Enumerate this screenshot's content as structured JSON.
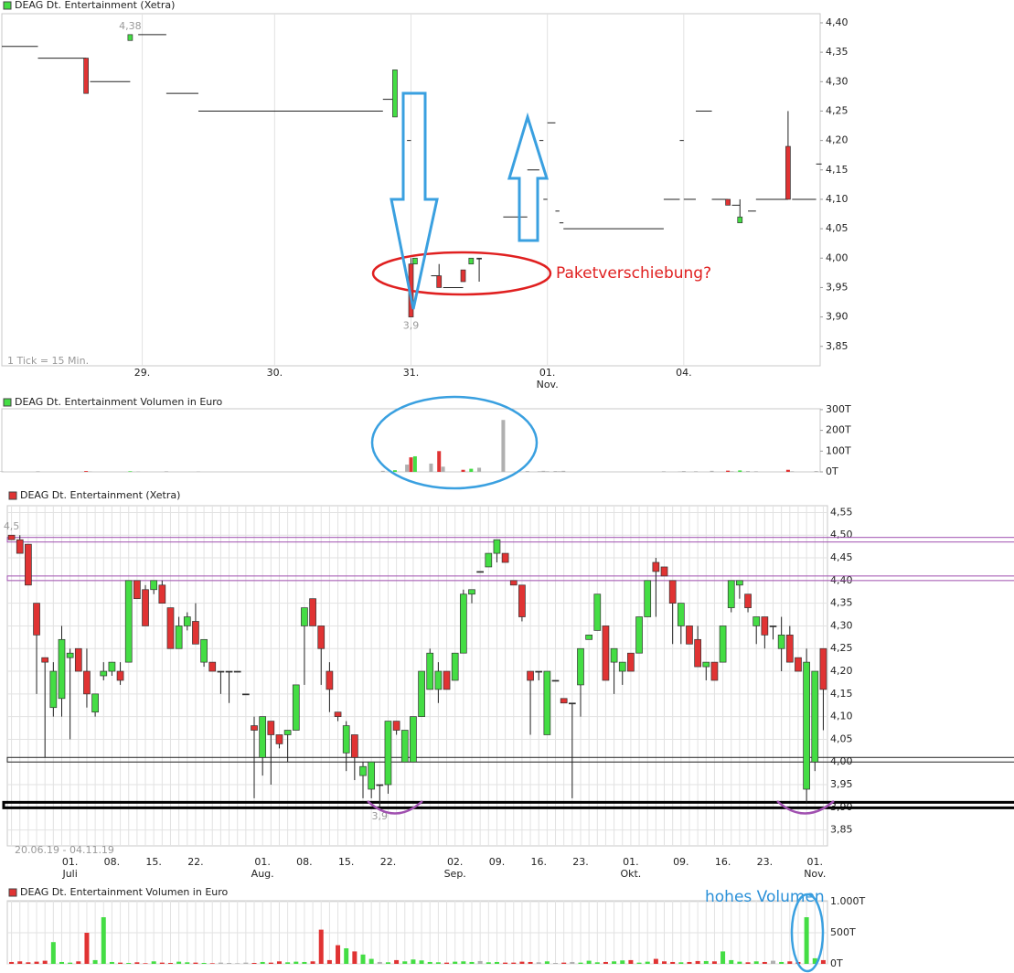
{
  "chart_data": [
    {
      "type": "candlestick",
      "title": "DEAG Dt. Entertainment (Xetra)",
      "note": "1 Tick = 15 Min.",
      "x": [
        0,
        9,
        21,
        22,
        32,
        34,
        41,
        49,
        95,
        98,
        101,
        102,
        103,
        107,
        109,
        110,
        115,
        117,
        119,
        125,
        131,
        134,
        135,
        136,
        138,
        139,
        140,
        165,
        169,
        170,
        173,
        177,
        181,
        182,
        184,
        186,
        188,
        196,
        197,
        203
      ],
      "open": [
        4.36,
        4.34,
        4.34,
        4.3,
        4.37,
        4.38,
        4.28,
        4.25,
        4.27,
        4.24,
        4.2,
        3.99,
        3.99,
        3.97,
        3.97,
        3.95,
        3.98,
        3.99,
        4.0,
        4.07,
        4.15,
        4.2,
        4.1,
        4.23,
        4.08,
        4.06,
        4.05,
        4.1,
        4.2,
        4.1,
        4.25,
        4.1,
        4.1,
        4.09,
        4.06,
        4.08,
        4.1,
        4.19,
        4.1,
        4.16
      ],
      "high": [
        4.36,
        4.34,
        4.34,
        4.3,
        4.38,
        4.38,
        4.28,
        4.25,
        4.27,
        4.32,
        4.2,
        4.0,
        4.0,
        3.97,
        3.99,
        3.95,
        3.98,
        4.0,
        4.0,
        4.07,
        4.15,
        4.2,
        4.1,
        4.23,
        4.08,
        4.06,
        4.05,
        4.1,
        4.2,
        4.1,
        4.25,
        4.1,
        4.1,
        4.09,
        4.1,
        4.08,
        4.1,
        4.25,
        4.1,
        4.16
      ],
      "low": [
        4.36,
        4.34,
        4.28,
        4.3,
        4.37,
        4.38,
        4.28,
        4.25,
        4.27,
        4.24,
        4.2,
        3.9,
        3.99,
        3.97,
        3.95,
        3.95,
        3.96,
        3.99,
        3.96,
        4.07,
        4.15,
        4.2,
        4.1,
        4.23,
        4.08,
        4.06,
        4.05,
        4.1,
        4.2,
        4.1,
        4.25,
        4.1,
        4.09,
        4.09,
        4.06,
        4.08,
        4.1,
        4.1,
        4.1,
        4.16
      ],
      "close": [
        4.36,
        4.34,
        4.28,
        4.3,
        4.38,
        4.38,
        4.28,
        4.25,
        4.27,
        4.32,
        4.2,
        3.9,
        4.0,
        3.97,
        3.95,
        3.95,
        3.96,
        4.0,
        4.0,
        4.07,
        4.15,
        4.2,
        4.1,
        4.23,
        4.08,
        4.06,
        4.05,
        4.1,
        4.2,
        4.1,
        4.25,
        4.1,
        4.09,
        4.09,
        4.07,
        4.08,
        4.1,
        4.1,
        4.1,
        4.16
      ],
      "up_color": "#44dd44",
      "down_color": "#e03333",
      "flat_color": "#222",
      "xlim": [
        0,
        204
      ],
      "xticks": [
        {
          "value": 35,
          "label": "29."
        },
        {
          "value": 68,
          "label": "30."
        },
        {
          "value": 102,
          "label": "31."
        },
        {
          "value": 136,
          "label": "01.\nNov."
        },
        {
          "value": 170,
          "label": "04."
        }
      ],
      "ylim": [
        3.817,
        4.4155
      ],
      "yticks": [
        {
          "value": 4.4,
          "label": "4,40"
        },
        {
          "value": 4.35,
          "label": "4,35"
        },
        {
          "value": 4.3,
          "label": "4,30"
        },
        {
          "value": 4.25,
          "label": "4,25"
        },
        {
          "value": 4.2,
          "label": "4,20"
        },
        {
          "value": 4.15,
          "label": "4,15"
        },
        {
          "value": 4.1,
          "label": "4,10"
        },
        {
          "value": 4.05,
          "label": "4,05"
        },
        {
          "value": 4,
          "label": "4,00"
        },
        {
          "value": 3.95,
          "label": "3,95"
        },
        {
          "value": 3.9,
          "label": "3,90"
        },
        {
          "value": 3.85,
          "label": "3,85"
        }
      ],
      "grid": "x",
      "annotations": [
        {
          "value": 4.38,
          "label": "4,38"
        },
        {
          "value": 3.9,
          "label": "3,9"
        }
      ],
      "callout": "Paketverschiebung?"
    },
    {
      "type": "bar",
      "title": "DEAG Dt. Entertainment Volumen in Euro",
      "x": [
        0,
        9,
        21,
        22,
        32,
        34,
        41,
        49,
        95,
        98,
        101,
        102,
        103,
        107,
        109,
        110,
        115,
        117,
        119,
        125,
        131,
        134,
        135,
        136,
        138,
        139,
        140,
        165,
        169,
        170,
        173,
        177,
        181,
        182,
        184,
        186,
        188,
        196,
        197,
        203
      ],
      "values": [
        2,
        3,
        4,
        2,
        3,
        2,
        3,
        2,
        5,
        8,
        35,
        70,
        75,
        40,
        100,
        25,
        10,
        15,
        20,
        250,
        4,
        3,
        5,
        3,
        4,
        3,
        5,
        3,
        2,
        4,
        3,
        5,
        6,
        3,
        7,
        4,
        3,
        10,
        3,
        4
      ],
      "xlim": [
        0,
        204
      ],
      "ylim": [
        0,
        304
      ],
      "yticks": [
        {
          "value": 300,
          "label": "300T"
        },
        {
          "value": 200,
          "label": "200T"
        },
        {
          "value": 100,
          "label": "100T"
        },
        {
          "value": 0,
          "label": "0T"
        }
      ],
      "grid": false
    },
    {
      "type": "candlestick",
      "title": "DEAG Dt. Entertainment (Xetra)",
      "note": "20.06.19 - 04.11.19",
      "categories": [
        null,
        null,
        null,
        null,
        null,
        null,
        null,
        "01.\nJuli",
        null,
        null,
        null,
        null,
        "08.",
        null,
        null,
        null,
        null,
        "15.",
        null,
        null,
        null,
        null,
        "22.",
        null,
        null,
        null,
        null,
        null,
        null,
        null,
        "01.\nAug.",
        null,
        null,
        null,
        null,
        "08.",
        null,
        null,
        null,
        null,
        "15.",
        null,
        null,
        null,
        null,
        "22.",
        null,
        null,
        null,
        null,
        null,
        null,
        null,
        "02.\nSep.",
        null,
        null,
        null,
        null,
        "09.",
        null,
        null,
        null,
        null,
        "16.",
        null,
        null,
        null,
        null,
        "23.",
        null,
        null,
        null,
        null,
        null,
        "01.\nOkt.",
        null,
        null,
        null,
        null,
        null,
        "09.",
        null,
        null,
        null,
        null,
        "16.",
        null,
        null,
        null,
        null,
        "23.",
        null,
        null,
        null,
        null,
        null,
        "01.\nNov.",
        null
      ],
      "open": [
        4.5,
        4.49,
        4.48,
        4.35,
        4.23,
        4.12,
        4.14,
        4.23,
        4.25,
        4.2,
        4.11,
        4.19,
        4.2,
        4.2,
        4.22,
        4.4,
        4.38,
        4.38,
        4.39,
        4.34,
        4.25,
        4.3,
        4.31,
        4.22,
        4.22,
        4.2,
        4.2,
        4.2,
        4.15,
        4.08,
        4.01,
        4.09,
        4.06,
        4.06,
        4.07,
        4.3,
        4.36,
        4.3,
        4.2,
        4.11,
        4.02,
        4.06,
        3.97,
        3.94,
        3.95,
        3.95,
        4.09,
        4.0,
        4.0,
        4.1,
        4.16,
        4.16,
        4.2,
        4.18,
        4.24,
        4.37,
        4.42,
        4.43,
        4.46,
        4.46,
        4.4,
        4.39,
        4.2,
        4.2,
        4.06,
        4.18,
        4.14,
        4.13,
        4.17,
        4.27,
        4.29,
        4.3,
        4.22,
        4.2,
        4.24,
        4.24,
        4.32,
        4.44,
        4.43,
        4.4,
        4.3,
        4.3,
        4.27,
        4.21,
        4.22,
        4.22,
        4.34,
        4.39,
        4.37,
        4.3,
        4.32,
        4.3,
        4.25,
        4.28,
        4.23,
        3.94,
        4.0,
        4.25
      ],
      "high": [
        4.5,
        4.5,
        4.48,
        4.35,
        4.23,
        4.22,
        4.3,
        4.25,
        4.25,
        4.25,
        4.15,
        4.22,
        4.22,
        4.22,
        4.4,
        4.4,
        4.39,
        4.4,
        4.4,
        4.34,
        4.32,
        4.33,
        4.35,
        4.27,
        4.22,
        4.2,
        4.2,
        4.2,
        4.15,
        4.1,
        4.1,
        4.09,
        4.06,
        4.07,
        4.17,
        4.34,
        4.36,
        4.3,
        4.22,
        4.11,
        4.09,
        4.06,
        4.0,
        4.0,
        3.95,
        4.09,
        4.09,
        4.07,
        4.1,
        4.2,
        4.25,
        4.22,
        4.2,
        4.24,
        4.38,
        4.38,
        4.42,
        4.46,
        4.49,
        4.46,
        4.4,
        4.39,
        4.2,
        4.2,
        4.2,
        4.18,
        4.14,
        4.13,
        4.25,
        4.28,
        4.37,
        4.3,
        4.25,
        4.22,
        4.24,
        4.32,
        4.4,
        4.45,
        4.43,
        4.4,
        4.35,
        4.3,
        4.3,
        4.22,
        4.22,
        4.3,
        4.4,
        4.4,
        4.37,
        4.32,
        4.32,
        4.3,
        4.32,
        4.3,
        4.23,
        4.25,
        4.2,
        4.25
      ],
      "low": [
        4.49,
        4.46,
        4.39,
        4.15,
        4.01,
        4.1,
        4.1,
        4.05,
        4.2,
        4.12,
        4.1,
        4.18,
        4.19,
        4.17,
        4.22,
        4.36,
        4.3,
        4.37,
        4.35,
        4.25,
        4.25,
        4.29,
        4.26,
        4.21,
        4.2,
        4.15,
        4.13,
        4.2,
        4.15,
        3.92,
        3.97,
        3.95,
        4.03,
        4.0,
        4.07,
        4.17,
        4.3,
        4.17,
        4.11,
        4.09,
        3.98,
        3.96,
        3.92,
        3.92,
        3.9,
        3.93,
        4.06,
        4.0,
        4.0,
        4.1,
        4.16,
        4.13,
        4.16,
        4.18,
        4.24,
        4.35,
        4.42,
        4.43,
        4.44,
        4.44,
        4.39,
        4.31,
        4.06,
        4.18,
        4.06,
        4.18,
        4.13,
        3.92,
        4.1,
        4.27,
        4.29,
        4.18,
        4.15,
        4.17,
        4.2,
        4.24,
        4.32,
        4.32,
        4.41,
        4.26,
        4.26,
        4.26,
        4.21,
        4.18,
        4.18,
        4.22,
        4.33,
        4.36,
        4.33,
        4.26,
        4.25,
        4.27,
        4.2,
        4.22,
        4.2,
        3.91,
        3.98,
        4.07
      ],
      "close": [
        4.49,
        4.46,
        4.39,
        4.28,
        4.22,
        4.2,
        4.27,
        4.24,
        4.2,
        4.15,
        4.15,
        4.2,
        4.22,
        4.18,
        4.4,
        4.36,
        4.3,
        4.4,
        4.35,
        4.25,
        4.3,
        4.32,
        4.26,
        4.27,
        4.2,
        4.2,
        4.2,
        4.2,
        4.15,
        4.07,
        4.1,
        4.06,
        4.04,
        4.07,
        4.17,
        4.34,
        4.3,
        4.25,
        4.16,
        4.1,
        4.08,
        4.01,
        3.99,
        4.0,
        3.95,
        4.09,
        4.07,
        4.07,
        4.1,
        4.2,
        4.24,
        4.2,
        4.16,
        4.24,
        4.37,
        4.38,
        4.42,
        4.46,
        4.49,
        4.44,
        4.39,
        4.32,
        4.18,
        4.2,
        4.2,
        4.18,
        4.13,
        4.13,
        4.25,
        4.28,
        4.37,
        4.18,
        4.25,
        4.22,
        4.2,
        4.32,
        4.4,
        4.42,
        4.41,
        4.35,
        4.35,
        4.26,
        4.21,
        4.22,
        4.18,
        4.3,
        4.4,
        4.4,
        4.34,
        4.32,
        4.28,
        4.3,
        4.28,
        4.22,
        4.2,
        4.22,
        4.2,
        4.16
      ],
      "up_color": "#44dd44",
      "down_color": "#e03333",
      "flat_color": "#222",
      "ylim": [
        3.815,
        4.565
      ],
      "yticks": [
        {
          "value": 4.55,
          "label": "4,55"
        },
        {
          "value": 4.5,
          "label": "4,50"
        },
        {
          "value": 4.45,
          "label": "4,45"
        },
        {
          "value": 4.4,
          "label": "4,40"
        },
        {
          "value": 4.35,
          "label": "4,35"
        },
        {
          "value": 4.3,
          "label": "4,30"
        },
        {
          "value": 4.25,
          "label": "4,25"
        },
        {
          "value": 4.2,
          "label": "4,20"
        },
        {
          "value": 4.15,
          "label": "4,15"
        },
        {
          "value": 4.1,
          "label": "4,10"
        },
        {
          "value": 4.05,
          "label": "4,05"
        },
        {
          "value": 4,
          "label": "4,00"
        },
        {
          "value": 3.95,
          "label": "3,95"
        },
        {
          "value": 3.9,
          "label": "3,90"
        },
        {
          "value": 3.85,
          "label": "3,85"
        }
      ],
      "grid": "both",
      "levels": [
        {
          "value": 4.49,
          "color": "#a050b0",
          "weight": 1
        },
        {
          "value": 4.405,
          "color": "#a050b0",
          "weight": 1
        },
        {
          "value": 4.005,
          "color": "#222222",
          "weight": 1
        },
        {
          "value": 3.905,
          "color": "#000000",
          "weight": 3
        }
      ],
      "annotations": [
        {
          "value": 4.5,
          "label": "4,5"
        },
        {
          "value": 3.9,
          "label": "3,9"
        }
      ]
    },
    {
      "type": "bar",
      "title": "DEAG Dt. Entertainment Volumen in Euro",
      "values": [
        30,
        40,
        25,
        35,
        50,
        350,
        30,
        20,
        40,
        500,
        60,
        750,
        30,
        20,
        15,
        25,
        10,
        40,
        20,
        15,
        35,
        25,
        20,
        15,
        10,
        20,
        15,
        10,
        20,
        15,
        30,
        20,
        40,
        25,
        35,
        30,
        40,
        550,
        60,
        300,
        250,
        200,
        150,
        80,
        30,
        25,
        60,
        40,
        70,
        55,
        30,
        25,
        20,
        35,
        40,
        30,
        45,
        25,
        30,
        20,
        20,
        35,
        30,
        25,
        40,
        15,
        20,
        30,
        20,
        50,
        25,
        30,
        40,
        55,
        60,
        20,
        35,
        80,
        40,
        30,
        25,
        30,
        45,
        45,
        40,
        200,
        60,
        35,
        25,
        40,
        30,
        50,
        30,
        40,
        30,
        750,
        90,
        60
      ],
      "ylim": [
        0,
        1015
      ],
      "yticks": [
        {
          "value": 1000,
          "label": "1.000T"
        },
        {
          "value": 500,
          "label": "500T"
        },
        {
          "value": 0,
          "label": "0T"
        }
      ],
      "grid": "both",
      "callout": "hohes Volumen"
    }
  ]
}
